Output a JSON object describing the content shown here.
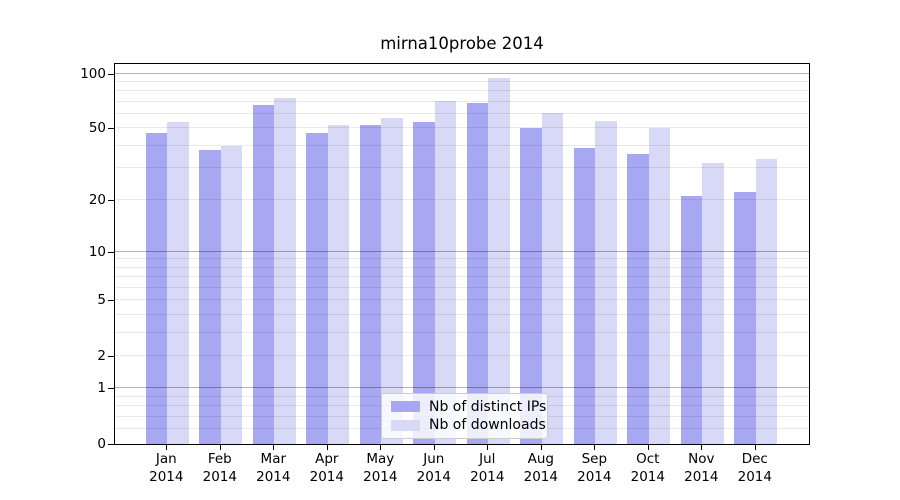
{
  "title": "mirna10probe 2014",
  "colors": {
    "distinct_ips": "#a8a8f2",
    "downloads": "#d8d8f7",
    "frame": "#000000",
    "background": "#ffffff"
  },
  "chart_data": {
    "type": "bar",
    "title": "mirna10probe 2014",
    "categories": [
      "Jan",
      "Feb",
      "Mar",
      "Apr",
      "May",
      "Jun",
      "Jul",
      "Aug",
      "Sep",
      "Oct",
      "Nov",
      "Dec"
    ],
    "year": "2014",
    "series": [
      {
        "name": "Nb of distinct IPs",
        "color": "#a8a8f2",
        "values": [
          47,
          38,
          67,
          47,
          52,
          54,
          69,
          50,
          39,
          36,
          21,
          22
        ]
      },
      {
        "name": "Nb of downloads",
        "color": "#d8d8f7",
        "values": [
          54,
          40,
          74,
          52,
          57,
          71,
          95,
          61,
          55,
          50,
          32,
          34
        ]
      }
    ],
    "xlabel": "",
    "ylabel": "",
    "yscale": "log1p",
    "yticks": [
      100,
      50,
      20,
      10,
      5,
      2,
      1,
      0
    ],
    "ylim": [
      0,
      114
    ],
    "grid": true,
    "grid_minor_values": [
      0.2,
      0.4,
      0.6,
      0.8,
      2,
      3,
      4,
      5,
      6,
      7,
      8,
      9,
      20,
      30,
      40,
      50,
      60,
      70,
      80,
      90
    ],
    "grid_major_values": [
      1,
      10,
      100
    ],
    "legend_position": "lower center"
  }
}
